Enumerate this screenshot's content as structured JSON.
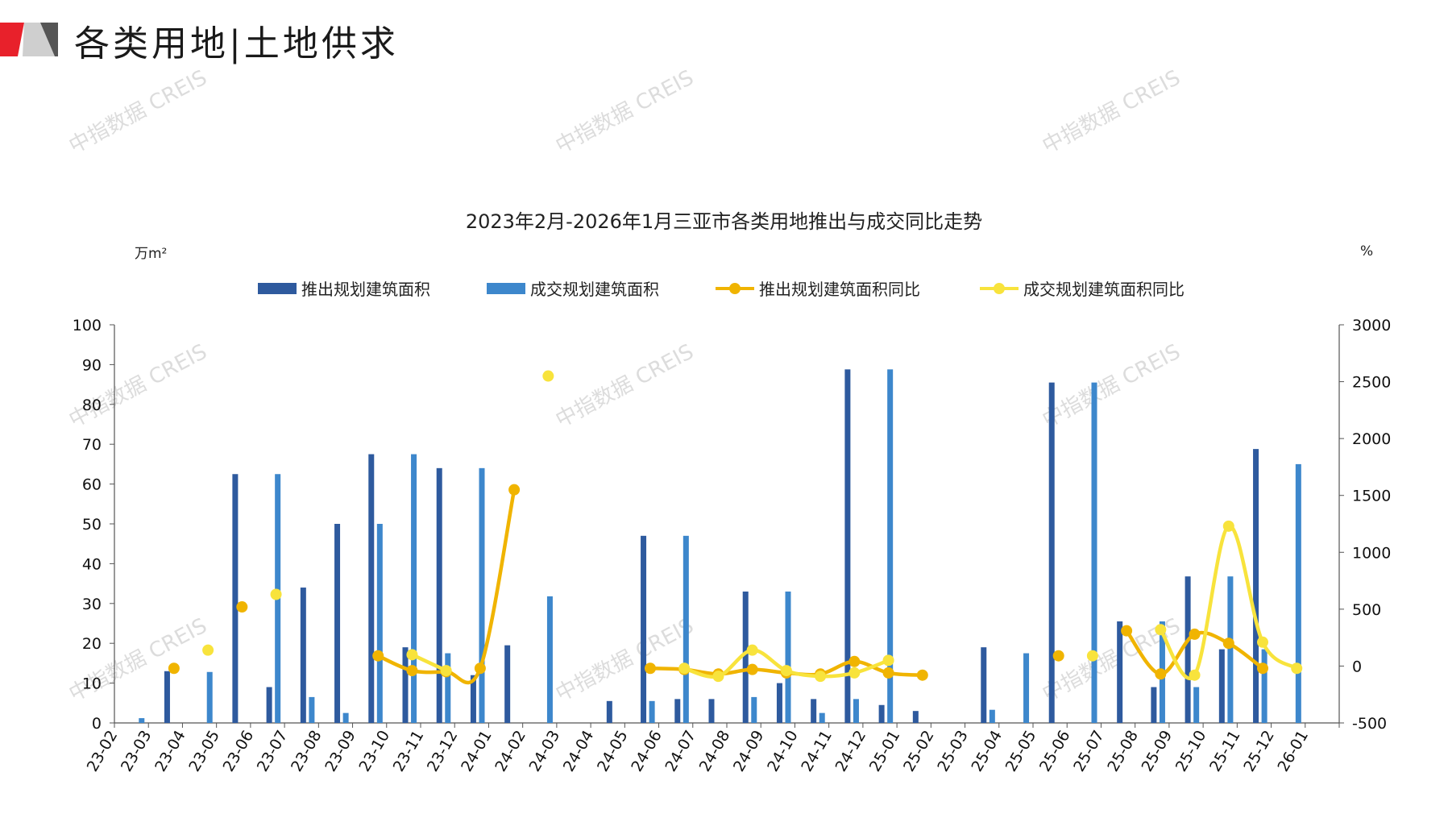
{
  "page": {
    "title": "各类用地|土地供求"
  },
  "watermark": "中指数据 CREIS",
  "colors": {
    "launch": "#2e5a9e",
    "deal": "#3d87cc",
    "launch_yoy": "#f0b400",
    "deal_yoy": "#f8e33c",
    "logo_red": "#e8212b"
  },
  "chart_data": {
    "type": "bar",
    "title": "2023年2月-2026年1月三亚市各类用地推出与成交同比走势",
    "y_left_unit": "万m²",
    "y_right_unit": "%",
    "ylim_left": [
      0,
      100
    ],
    "ylim_right": [
      -500,
      3000
    ],
    "yticks_left": [
      "100",
      "90",
      "80",
      "70",
      "60",
      "50",
      "40",
      "30",
      "20",
      "10",
      "0"
    ],
    "yticks_right": [
      "3000",
      "2500",
      "2000",
      "1500",
      "1000",
      "500",
      "0",
      "-500"
    ],
    "categories": [
      "23-02",
      "23-03",
      "23-04",
      "23-05",
      "23-06",
      "23-07",
      "23-08",
      "23-09",
      "23-10",
      "23-11",
      "23-12",
      "24-01",
      "24-02",
      "24-03",
      "24-04",
      "24-05",
      "24-06",
      "24-07",
      "24-08",
      "24-09",
      "24-10",
      "24-11",
      "24-12",
      "25-01",
      "25-02",
      "25-03",
      "25-04",
      "25-05",
      "25-06",
      "25-07",
      "25-08",
      "25-09",
      "25-10",
      "25-11",
      "25-12",
      "26-01"
    ],
    "legend": [
      "推出规划建筑面积",
      "成交规划建筑面积",
      "推出规划建筑面积同比",
      "成交规划建筑面积同比"
    ],
    "series": [
      {
        "name": "推出规划建筑面积",
        "type": "bar",
        "axis": "left",
        "values": [
          0,
          13,
          0,
          62.5,
          9,
          34,
          50,
          67.5,
          19,
          64,
          12,
          19.5,
          0,
          0,
          5.5,
          47,
          6,
          6,
          33,
          10,
          6,
          88.8,
          4.5,
          3,
          0,
          19,
          0,
          85.5,
          0,
          25.5,
          9,
          36.8,
          18.5,
          68.8,
          0,
          0
        ]
      },
      {
        "name": "成交规划建筑面积",
        "type": "bar",
        "axis": "left",
        "values": [
          1.2,
          0,
          12.8,
          0,
          62.5,
          6.5,
          2.5,
          50,
          67.5,
          17.5,
          64,
          0,
          31.8,
          0,
          0,
          5.5,
          47,
          0,
          6.5,
          33,
          2.5,
          6,
          88.8,
          0,
          0,
          3.3,
          17.5,
          0,
          85.5,
          0,
          25.5,
          9,
          36.8,
          18.5,
          65,
          0
        ]
      },
      {
        "name": "推出规划建筑面积同比",
        "type": "line",
        "axis": "right",
        "values": [
          null,
          -20,
          null,
          520,
          null,
          null,
          null,
          90,
          -40,
          -50,
          -20,
          1550,
          null,
          null,
          null,
          -20,
          -30,
          -70,
          -30,
          -60,
          -70,
          40,
          -60,
          -80,
          null,
          null,
          null,
          90,
          null,
          310,
          -70,
          280,
          200,
          -20,
          null,
          null
        ]
      },
      {
        "name": "成交规划建筑面积同比",
        "type": "line",
        "axis": "right",
        "values": [
          null,
          null,
          140,
          null,
          630,
          null,
          null,
          null,
          100,
          -40,
          null,
          null,
          2550,
          null,
          null,
          null,
          -20,
          -90,
          140,
          -40,
          -90,
          -60,
          50,
          null,
          null,
          null,
          null,
          null,
          90,
          null,
          320,
          -80,
          1230,
          210,
          -20,
          null
        ]
      }
    ]
  }
}
